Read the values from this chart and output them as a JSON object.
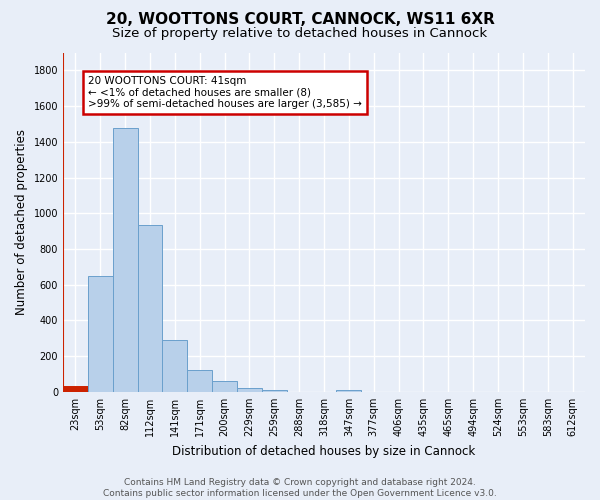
{
  "title": "20, WOOTTONS COURT, CANNOCK, WS11 6XR",
  "subtitle": "Size of property relative to detached houses in Cannock",
  "xlabel": "Distribution of detached houses by size in Cannock",
  "ylabel": "Number of detached properties",
  "bar_labels": [
    "23sqm",
    "53sqm",
    "82sqm",
    "112sqm",
    "141sqm",
    "171sqm",
    "200sqm",
    "229sqm",
    "259sqm",
    "288sqm",
    "318sqm",
    "347sqm",
    "377sqm",
    "406sqm",
    "435sqm",
    "465sqm",
    "494sqm",
    "524sqm",
    "553sqm",
    "583sqm",
    "612sqm"
  ],
  "bar_values": [
    35,
    650,
    1475,
    935,
    290,
    120,
    60,
    22,
    12,
    0,
    0,
    10,
    0,
    0,
    0,
    0,
    0,
    0,
    0,
    0,
    0
  ],
  "bar_color": "#b8d0ea",
  "bar_edge_color": "#6aa0cc",
  "highlight_bar_index": 0,
  "highlight_color": "#cc2200",
  "annotation_text_line1": "20 WOOTTONS COURT: 41sqm",
  "annotation_text_line2": "← <1% of detached houses are smaller (8)",
  "annotation_text_line3": ">99% of semi-detached houses are larger (3,585) →",
  "annotation_box_color": "white",
  "annotation_box_edge_color": "#cc0000",
  "ylim": [
    0,
    1900
  ],
  "yticks": [
    0,
    200,
    400,
    600,
    800,
    1000,
    1200,
    1400,
    1600,
    1800
  ],
  "footer": "Contains HM Land Registry data © Crown copyright and database right 2024.\nContains public sector information licensed under the Open Government Licence v3.0.",
  "bg_color": "#e8eef8",
  "plot_bg_color": "#e8eef8",
  "grid_color": "#ffffff",
  "title_fontsize": 11,
  "subtitle_fontsize": 9.5,
  "axis_label_fontsize": 8.5,
  "tick_fontsize": 7,
  "footer_fontsize": 6.5
}
